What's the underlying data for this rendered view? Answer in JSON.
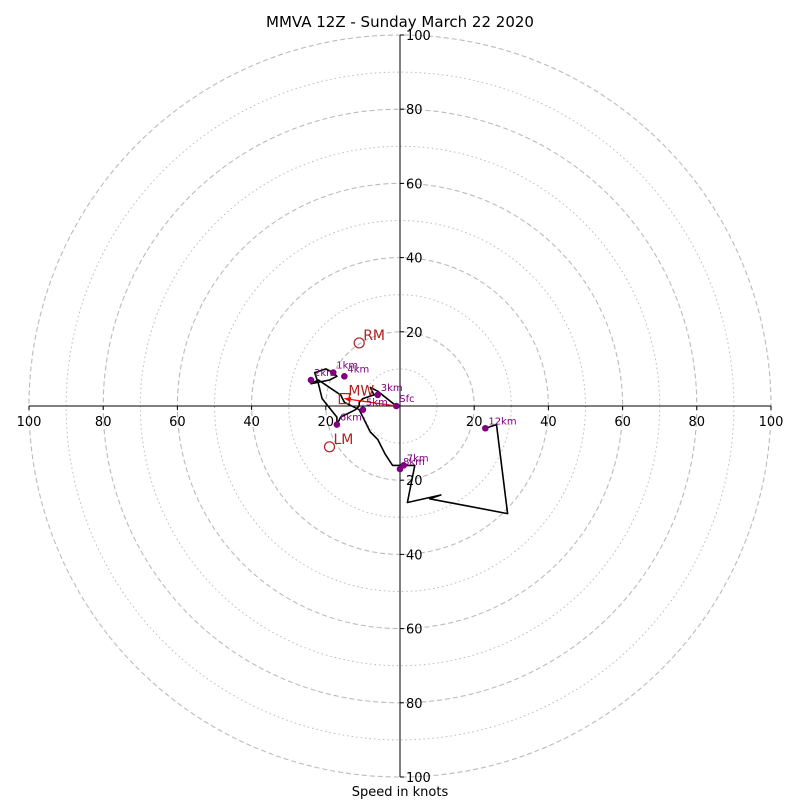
{
  "chart_data": {
    "type": "hodograph",
    "title": "MMVA 12Z - Sunday March 22 2020",
    "xlabel": "Speed in knots",
    "xlim": [
      -100,
      100
    ],
    "ylim": [
      -100,
      100
    ],
    "rings_major": [
      20,
      40,
      60,
      80,
      100
    ],
    "rings_minor": [
      10,
      30,
      50,
      70,
      90
    ],
    "tick_labels": {
      "x_negative": [
        "100",
        "80",
        "60",
        "40",
        "20"
      ],
      "x_positive": [
        "20",
        "40",
        "60",
        "80",
        "100"
      ],
      "y_positive": [
        "20",
        "40",
        "60",
        "80",
        "100"
      ],
      "y_negative": [
        "20",
        "40",
        "60",
        "80",
        "100"
      ]
    },
    "wind_trace": [
      [
        -1,
        0
      ],
      [
        -6,
        4
      ],
      [
        -8,
        5
      ],
      [
        -7,
        3
      ],
      [
        -10,
        2
      ],
      [
        -11,
        1
      ],
      [
        -11,
        0
      ],
      [
        -12,
        -1
      ],
      [
        -14,
        -2
      ],
      [
        -16,
        -3
      ],
      [
        -17,
        -5
      ],
      [
        -17,
        -3
      ],
      [
        -21,
        2
      ],
      [
        -22,
        6
      ],
      [
        -23,
        9
      ],
      [
        -20,
        10
      ],
      [
        -18,
        9
      ],
      [
        -17,
        8
      ],
      [
        -19,
        7
      ],
      [
        -24,
        6
      ],
      [
        -22,
        7
      ],
      [
        -16,
        3
      ],
      [
        -15,
        1
      ],
      [
        -11,
        -1
      ],
      [
        -8,
        -7
      ],
      [
        -6,
        -9
      ],
      [
        -4,
        -13
      ],
      [
        -2,
        -16
      ],
      [
        1,
        -16
      ],
      [
        4,
        -16
      ],
      [
        3,
        -21
      ],
      [
        2,
        -26
      ],
      [
        11,
        -24
      ],
      [
        8,
        -25
      ],
      [
        29,
        -29
      ],
      [
        26,
        -5
      ],
      [
        23,
        -6
      ]
    ],
    "height_markers": [
      {
        "label": "Sfc",
        "u": -1,
        "v": 0
      },
      {
        "label": "1km",
        "u": -18,
        "v": 9
      },
      {
        "label": "2km",
        "u": -24,
        "v": 7
      },
      {
        "label": "3km",
        "u": -6,
        "v": 3
      },
      {
        "label": "4km",
        "u": -15,
        "v": 8
      },
      {
        "label": "5km",
        "u": -10,
        "v": -1
      },
      {
        "label": "6km",
        "u": -17,
        "v": -5
      },
      {
        "label": "7km",
        "u": 1,
        "v": -16
      },
      {
        "label": "8km",
        "u": 0,
        "v": -17
      },
      {
        "label": "12km",
        "u": 23,
        "v": -6
      }
    ],
    "storm_motion": [
      {
        "label": "RM",
        "u": -11,
        "v": 17
      },
      {
        "label": "LM",
        "u": -19,
        "v": -11
      },
      {
        "label": "MW",
        "u": -15,
        "v": 2
      }
    ],
    "shear_vector": {
      "from": [
        -1,
        0
      ],
      "to": [
        -15,
        2
      ]
    },
    "colors": {
      "trace": "#000000",
      "height_marker": "#800080",
      "storm_motion": "#b22222",
      "shear_vector": "#ff0000",
      "ring": "#bbbbbb"
    }
  }
}
